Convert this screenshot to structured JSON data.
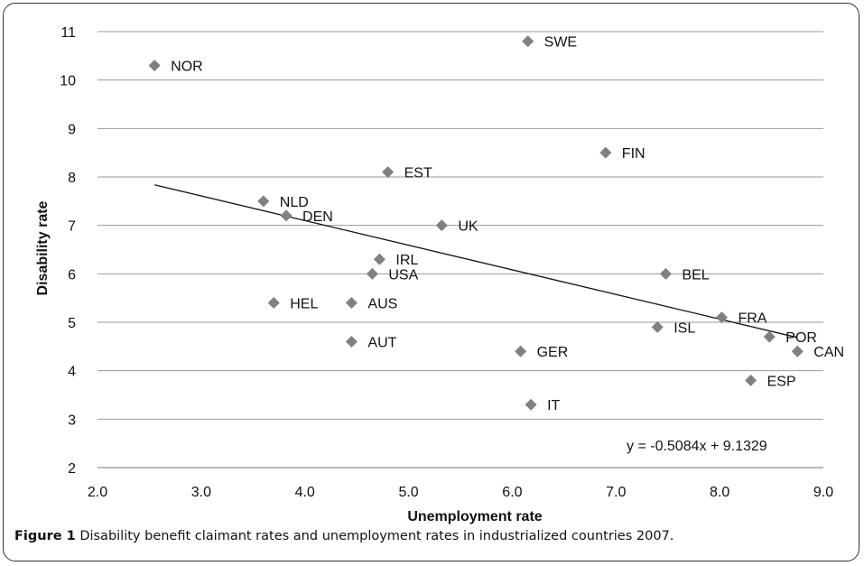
{
  "figure": {
    "caption_label": "Figure 1",
    "caption_text": "Disability benefit claimant rates and unemployment rates in industrialized countries 2007."
  },
  "chart_data": {
    "type": "scatter",
    "title": "",
    "xlabel": "Unemployment rate",
    "ylabel": "Disability rate",
    "xlim": [
      2.0,
      9.0
    ],
    "ylim": [
      2,
      11
    ],
    "xticks": [
      "2.0",
      "3.0",
      "4.0",
      "5.0",
      "6.0",
      "7.0",
      "8.0",
      "9.0"
    ],
    "yticks": [
      "2",
      "3",
      "4",
      "5",
      "6",
      "7",
      "8",
      "9",
      "10",
      "11"
    ],
    "grid": "horizontal",
    "marker": "diamond",
    "marker_color": "#808080",
    "points": [
      {
        "label": "NOR",
        "x": 2.55,
        "y": 10.3
      },
      {
        "label": "SWE",
        "x": 6.15,
        "y": 10.8
      },
      {
        "label": "FIN",
        "x": 6.9,
        "y": 8.5
      },
      {
        "label": "EST",
        "x": 4.8,
        "y": 8.1
      },
      {
        "label": "NLD",
        "x": 3.6,
        "y": 7.5
      },
      {
        "label": "DEN",
        "x": 3.82,
        "y": 7.2
      },
      {
        "label": "UK",
        "x": 5.32,
        "y": 7.0
      },
      {
        "label": "IRL",
        "x": 4.72,
        "y": 6.3
      },
      {
        "label": "USA",
        "x": 4.65,
        "y": 6.0
      },
      {
        "label": "BEL",
        "x": 7.48,
        "y": 6.0
      },
      {
        "label": "HEL",
        "x": 3.7,
        "y": 5.4
      },
      {
        "label": "AUS",
        "x": 4.45,
        "y": 5.4
      },
      {
        "label": "FRA",
        "x": 8.02,
        "y": 5.1
      },
      {
        "label": "ISL",
        "x": 7.4,
        "y": 4.9
      },
      {
        "label": "POR",
        "x": 8.48,
        "y": 4.7
      },
      {
        "label": "AUT",
        "x": 4.45,
        "y": 4.6
      },
      {
        "label": "GER",
        "x": 6.08,
        "y": 4.4
      },
      {
        "label": "CAN",
        "x": 8.75,
        "y": 4.4
      },
      {
        "label": "ESP",
        "x": 8.3,
        "y": 3.8
      },
      {
        "label": "IT",
        "x": 6.18,
        "y": 3.3
      }
    ],
    "trendline": {
      "equation": "y = -0.5084x + 9.1329",
      "slope": -0.5084,
      "intercept": 9.1329,
      "x_range": [
        2.55,
        8.75
      ]
    }
  }
}
